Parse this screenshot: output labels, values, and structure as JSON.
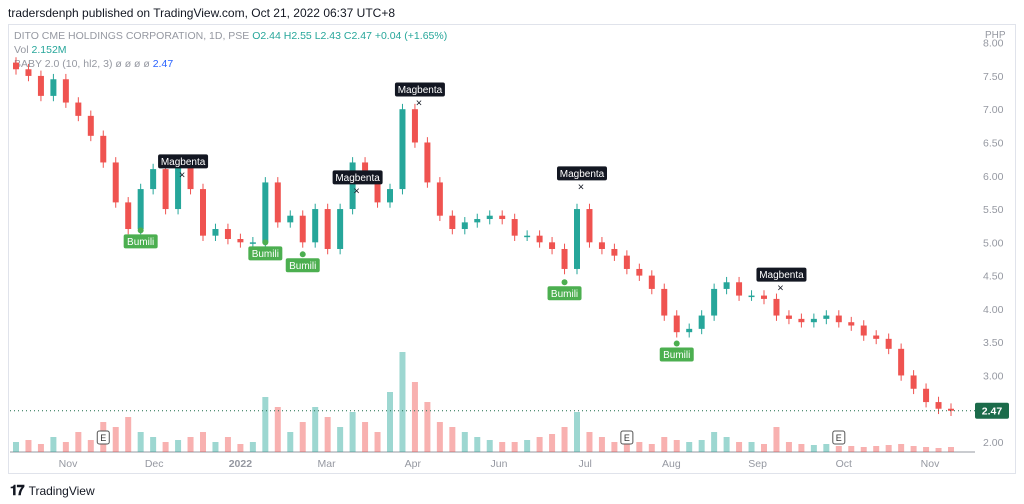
{
  "header": {
    "published": "tradersdenph published on TradingView.com, Oct 21, 2022 06:37 UTC+8"
  },
  "legend": {
    "symbol": "DITO CME HOLDINGS CORPORATION, 1D, PSE",
    "ohlc": "O2.44  H2.55  L2.43  C2.47  +0.04 (+1.65%)",
    "vol_label": "Vol",
    "vol_value": "2.152M",
    "indicator": "BABY 2.0 (10, hl2, 3)",
    "indicator_vals": "ø  ø  ø  ø",
    "indicator_value": "2.47"
  },
  "footer": {
    "brand": "TradingView"
  },
  "colors": {
    "up": "#26a69a",
    "down": "#ef5350",
    "buy": "#4caf50",
    "sell": "#131722",
    "price_tag": "#1b6b4a"
  },
  "chart_data": {
    "type": "candlestick",
    "currency": "PHP",
    "price_axis": {
      "ticks": [
        "8.00",
        "7.50",
        "7.00",
        "6.50",
        "6.00",
        "5.50",
        "5.00",
        "4.50",
        "4.00",
        "3.50",
        "3.00",
        "2.00"
      ],
      "range": [
        1.85,
        8.25
      ]
    },
    "time_axis": {
      "labels": [
        "Nov",
        "Dec",
        "2022",
        "Mar",
        "Apr",
        "Jun",
        "Jul",
        "Aug",
        "Sep",
        "Oct",
        "Nov"
      ]
    },
    "last_price": "2.47",
    "close_path": [
      7.6,
      7.5,
      7.2,
      7.45,
      7.1,
      6.9,
      6.6,
      6.2,
      5.6,
      5.2,
      5.8,
      6.1,
      5.5,
      6.2,
      5.8,
      5.1,
      5.2,
      5.05,
      5.0,
      5.0,
      5.9,
      5.3,
      5.4,
      5.0,
      5.5,
      4.9,
      5.5,
      6.2,
      6.0,
      5.6,
      5.8,
      7.0,
      6.5,
      5.9,
      5.4,
      5.2,
      5.3,
      5.35,
      5.4,
      5.35,
      5.1,
      5.1,
      5.0,
      4.9,
      4.6,
      5.5,
      5.0,
      4.9,
      4.8,
      4.6,
      4.5,
      4.3,
      3.9,
      3.65,
      3.7,
      3.9,
      4.3,
      4.4,
      4.2,
      4.2,
      4.15,
      3.9,
      3.85,
      3.8,
      3.85,
      3.9,
      3.8,
      3.75,
      3.6,
      3.55,
      3.4,
      3.0,
      2.8,
      2.6,
      2.5,
      2.47
    ],
    "signals": [
      {
        "type": "Magbenta",
        "i": 13,
        "price": 6.02
      },
      {
        "type": "Magbenta",
        "i": 27,
        "price": 5.78
      },
      {
        "type": "Magbenta",
        "i": 32,
        "price": 7.1
      },
      {
        "type": "Magbenta",
        "i": 45,
        "price": 5.84
      },
      {
        "type": "Magbenta",
        "i": 61,
        "price": 4.32
      },
      {
        "type": "Bumili",
        "i": 10,
        "price": 5.18
      },
      {
        "type": "Bumili",
        "i": 20,
        "price": 5.0
      },
      {
        "type": "Bumili",
        "i": 23,
        "price": 4.82
      },
      {
        "type": "Bumili",
        "i": 44,
        "price": 4.4
      },
      {
        "type": "Bumili",
        "i": 53,
        "price": 3.48
      }
    ],
    "earnings_markers": [
      {
        "label": "E",
        "i": 7
      },
      {
        "label": "E",
        "i": 49
      },
      {
        "label": "E",
        "i": 66
      }
    ],
    "volume_relative": [
      0.1,
      0.12,
      0.08,
      0.15,
      0.1,
      0.2,
      0.12,
      0.3,
      0.25,
      0.35,
      0.2,
      0.15,
      0.1,
      0.12,
      0.15,
      0.2,
      0.1,
      0.15,
      0.08,
      0.1,
      0.55,
      0.45,
      0.2,
      0.3,
      0.45,
      0.35,
      0.25,
      0.4,
      0.3,
      0.2,
      0.6,
      1.0,
      0.7,
      0.5,
      0.3,
      0.25,
      0.2,
      0.15,
      0.12,
      0.1,
      0.1,
      0.12,
      0.15,
      0.18,
      0.25,
      0.4,
      0.2,
      0.15,
      0.1,
      0.12,
      0.1,
      0.08,
      0.15,
      0.12,
      0.1,
      0.12,
      0.2,
      0.15,
      0.1,
      0.1,
      0.08,
      0.25,
      0.1,
      0.08,
      0.07,
      0.08,
      0.06,
      0.06,
      0.05,
      0.06,
      0.07,
      0.08,
      0.06,
      0.05,
      0.04,
      0.05
    ]
  }
}
